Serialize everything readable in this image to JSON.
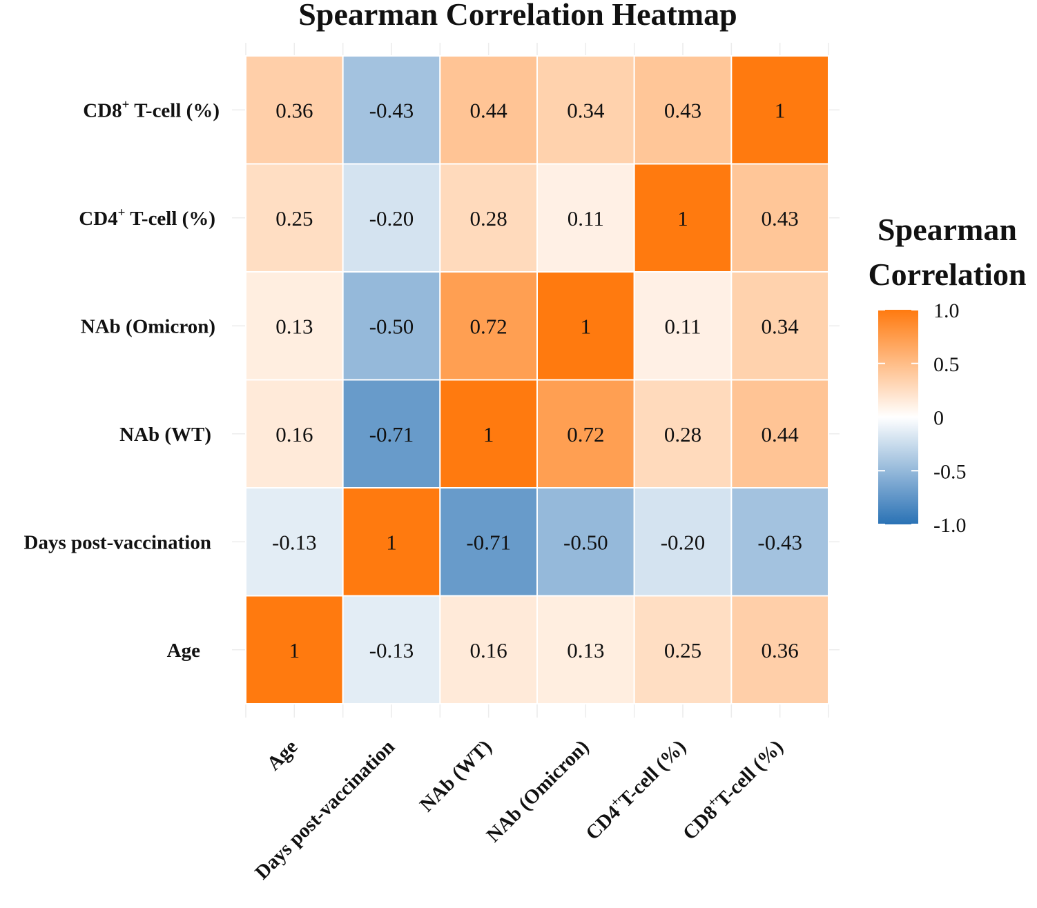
{
  "chart_data": {
    "type": "heatmap",
    "title": "Spearman Correlation Heatmap",
    "x_categories": [
      {
        "main": "Age",
        "sup": "",
        "rest": ""
      },
      {
        "main": "Days post-vaccination",
        "sup": "",
        "rest": ""
      },
      {
        "main": "NAb (WT)",
        "sup": "",
        "rest": ""
      },
      {
        "main": "NAb (Omicron)",
        "sup": "",
        "rest": ""
      },
      {
        "main": "CD4",
        "sup": "+",
        "rest": "T-cell (%)"
      },
      {
        "main": "CD8",
        "sup": "+",
        "rest": "T-cell (%)"
      }
    ],
    "y_categories": [
      {
        "main": "Age",
        "sup": "",
        "rest": ""
      },
      {
        "main": "Days post-vaccination",
        "sup": "",
        "rest": ""
      },
      {
        "main": "NAb (WT)",
        "sup": "",
        "rest": ""
      },
      {
        "main": "NAb (Omicron)",
        "sup": "",
        "rest": ""
      },
      {
        "main": "CD4",
        "sup": "+",
        "rest": " T-cell (%)"
      },
      {
        "main": "CD8",
        "sup": "+",
        "rest": " T-cell (%)"
      }
    ],
    "values": [
      [
        1,
        -0.13,
        0.16,
        0.13,
        0.25,
        0.36
      ],
      [
        -0.13,
        1,
        -0.71,
        -0.5,
        -0.2,
        -0.43
      ],
      [
        0.16,
        -0.71,
        1,
        0.72,
        0.28,
        0.44
      ],
      [
        0.13,
        -0.5,
        0.72,
        1,
        0.11,
        0.34
      ],
      [
        0.25,
        -0.2,
        0.28,
        0.11,
        1,
        0.43
      ],
      [
        0.36,
        -0.43,
        0.44,
        0.34,
        0.43,
        1
      ]
    ],
    "value_labels": [
      [
        "1",
        "-0.13",
        "0.16",
        "0.13",
        "0.25",
        "0.36"
      ],
      [
        "-0.13",
        "1",
        "-0.71",
        "-0.50",
        "-0.20",
        "-0.43"
      ],
      [
        "0.16",
        "-0.71",
        "1",
        "0.72",
        "0.28",
        "0.44"
      ],
      [
        "0.13",
        "-0.50",
        "0.72",
        "1",
        "0.11",
        "0.34"
      ],
      [
        "0.25",
        "-0.20",
        "0.28",
        "0.11",
        "1",
        "0.43"
      ],
      [
        "0.36",
        "-0.43",
        "0.44",
        "0.34",
        "0.43",
        "1"
      ]
    ],
    "color_scale": {
      "min": -1.0,
      "max": 1.0,
      "low_color": "#2a72b5",
      "mid_color": "#ffffff",
      "high_color": "#ff7a0f"
    },
    "legend": {
      "title_lines": [
        "Spearman",
        "Correlation"
      ],
      "placement": "right",
      "ticks": [
        1.0,
        0.5,
        0,
        -0.5,
        -1.0
      ],
      "tick_labels": [
        "1.0",
        "0.5",
        "0",
        "-0.5",
        "-1.0"
      ]
    },
    "grid": true
  }
}
